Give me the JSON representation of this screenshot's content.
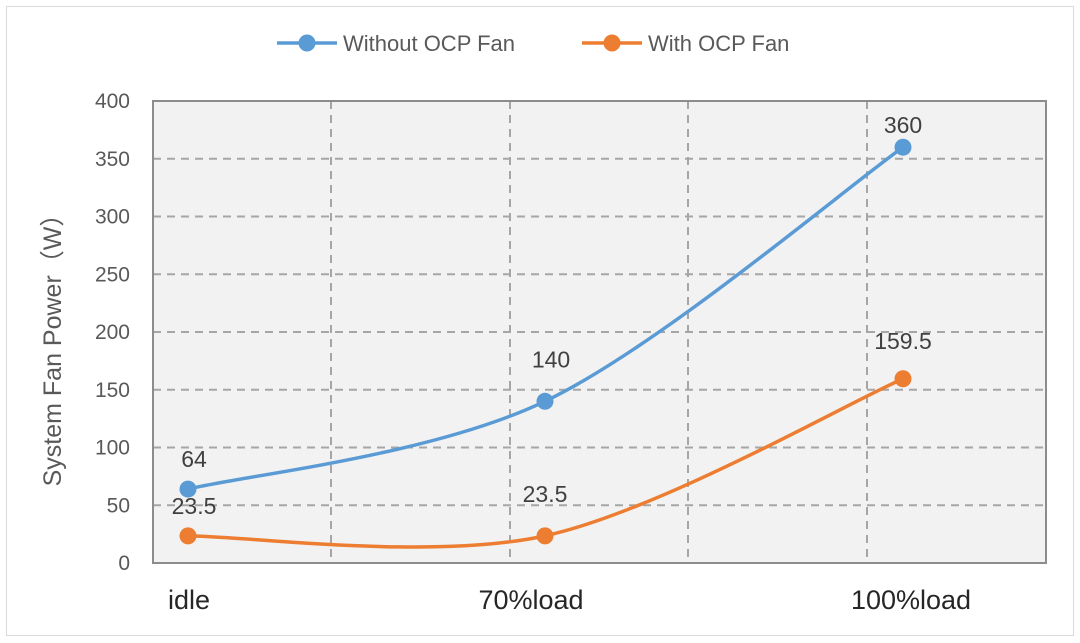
{
  "chart_data": {
    "type": "line",
    "categories": [
      "idle",
      "70%load",
      "100%load"
    ],
    "series": [
      {
        "name": "Without OCP Fan",
        "values": [
          64,
          140,
          360
        ],
        "color": "#5b9bd5",
        "labels": [
          "64",
          "140",
          "360"
        ]
      },
      {
        "name": "With OCP Fan",
        "values": [
          23.5,
          23.5,
          159.5
        ],
        "color": "#ed7d31",
        "labels": [
          "23.5",
          "23.5",
          "159.5"
        ]
      }
    ],
    "title": "",
    "xlabel": "",
    "ylabel": "System Fan Power（W）",
    "ylim": [
      0,
      400
    ],
    "yticks": [
      "0",
      "50",
      "100",
      "150",
      "200",
      "250",
      "300",
      "350",
      "400"
    ],
    "grid": true,
    "grid_style": "dashed",
    "legend_position": "top-center",
    "smooth": true
  }
}
